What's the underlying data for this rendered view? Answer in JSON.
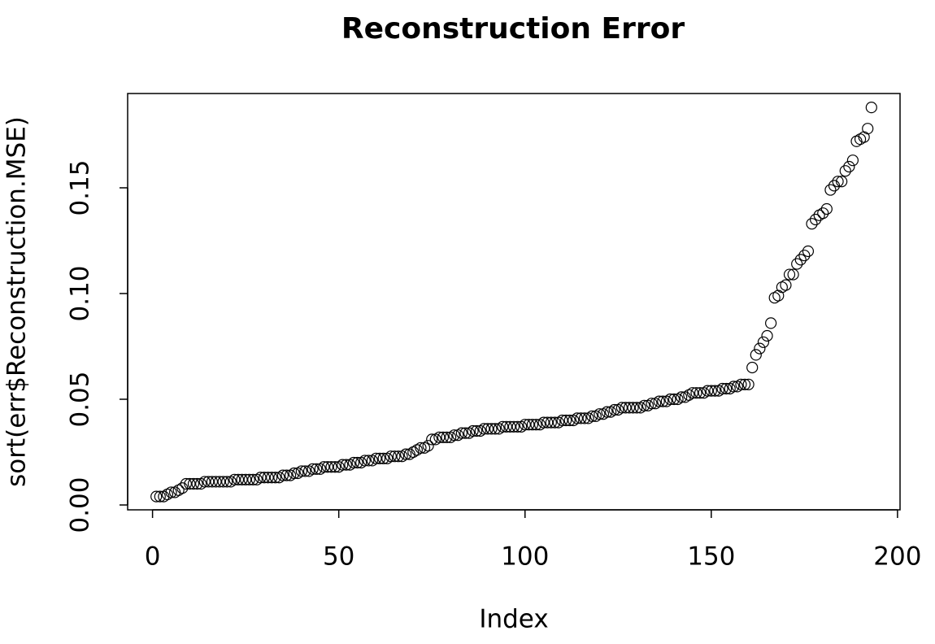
{
  "chart_data": {
    "type": "scatter",
    "title": "Reconstruction Error",
    "x_label": "Index",
    "y_label": "sort(err$Reconstruction.MSE)",
    "x": [
      1,
      2,
      3,
      4,
      5,
      6,
      7,
      8,
      9,
      10,
      11,
      12,
      13,
      14,
      15,
      16,
      17,
      18,
      19,
      20,
      21,
      22,
      23,
      24,
      25,
      26,
      27,
      28,
      29,
      30,
      31,
      32,
      33,
      34,
      35,
      36,
      37,
      38,
      39,
      40,
      41,
      42,
      43,
      44,
      45,
      46,
      47,
      48,
      49,
      50,
      51,
      52,
      53,
      54,
      55,
      56,
      57,
      58,
      59,
      60,
      61,
      62,
      63,
      64,
      65,
      66,
      67,
      68,
      69,
      70,
      71,
      72,
      73,
      74,
      75,
      76,
      77,
      78,
      79,
      80,
      81,
      82,
      83,
      84,
      85,
      86,
      87,
      88,
      89,
      90,
      91,
      92,
      93,
      94,
      95,
      96,
      97,
      98,
      99,
      100,
      101,
      102,
      103,
      104,
      105,
      106,
      107,
      108,
      109,
      110,
      111,
      112,
      113,
      114,
      115,
      116,
      117,
      118,
      119,
      120,
      121,
      122,
      123,
      124,
      125,
      126,
      127,
      128,
      129,
      130,
      131,
      132,
      133,
      134,
      135,
      136,
      137,
      138,
      139,
      140,
      141,
      142,
      143,
      144,
      145,
      146,
      147,
      148,
      149,
      150,
      151,
      152,
      153,
      154,
      155,
      156,
      157,
      158,
      159,
      160,
      161,
      162,
      163,
      164,
      165,
      166,
      167,
      168,
      169,
      170,
      171,
      172,
      173,
      174,
      175,
      176,
      177,
      178,
      179,
      180,
      181,
      182,
      183,
      184,
      185,
      186,
      187,
      188,
      189,
      190,
      191,
      192,
      193
    ],
    "values": [
      0.004,
      0.004,
      0.004,
      0.005,
      0.006,
      0.006,
      0.007,
      0.008,
      0.01,
      0.01,
      0.01,
      0.01,
      0.01,
      0.011,
      0.011,
      0.011,
      0.011,
      0.011,
      0.011,
      0.011,
      0.011,
      0.012,
      0.012,
      0.012,
      0.012,
      0.012,
      0.012,
      0.012,
      0.013,
      0.013,
      0.013,
      0.013,
      0.013,
      0.013,
      0.014,
      0.014,
      0.014,
      0.015,
      0.015,
      0.016,
      0.016,
      0.016,
      0.017,
      0.017,
      0.017,
      0.018,
      0.018,
      0.018,
      0.018,
      0.018,
      0.019,
      0.019,
      0.019,
      0.02,
      0.02,
      0.02,
      0.021,
      0.021,
      0.021,
      0.022,
      0.022,
      0.022,
      0.022,
      0.023,
      0.023,
      0.023,
      0.023,
      0.024,
      0.024,
      0.025,
      0.026,
      0.027,
      0.027,
      0.028,
      0.031,
      0.031,
      0.032,
      0.032,
      0.032,
      0.032,
      0.033,
      0.033,
      0.034,
      0.034,
      0.034,
      0.035,
      0.035,
      0.035,
      0.036,
      0.036,
      0.036,
      0.036,
      0.036,
      0.037,
      0.037,
      0.037,
      0.037,
      0.037,
      0.037,
      0.038,
      0.038,
      0.038,
      0.038,
      0.038,
      0.039,
      0.039,
      0.039,
      0.039,
      0.039,
      0.04,
      0.04,
      0.04,
      0.04,
      0.041,
      0.041,
      0.041,
      0.041,
      0.042,
      0.042,
      0.043,
      0.043,
      0.044,
      0.044,
      0.045,
      0.045,
      0.046,
      0.046,
      0.046,
      0.046,
      0.046,
      0.046,
      0.047,
      0.047,
      0.048,
      0.048,
      0.049,
      0.049,
      0.049,
      0.05,
      0.05,
      0.05,
      0.051,
      0.051,
      0.052,
      0.053,
      0.053,
      0.053,
      0.053,
      0.054,
      0.054,
      0.054,
      0.054,
      0.055,
      0.055,
      0.055,
      0.056,
      0.056,
      0.057,
      0.057,
      0.057,
      0.065,
      0.071,
      0.074,
      0.077,
      0.08,
      0.086,
      0.098,
      0.099,
      0.103,
      0.104,
      0.109,
      0.109,
      0.114,
      0.116,
      0.118,
      0.12,
      0.133,
      0.135,
      0.137,
      0.138,
      0.14,
      0.149,
      0.151,
      0.153,
      0.153,
      0.158,
      0.16,
      0.163,
      0.172,
      0.173,
      0.174,
      0.178,
      0.188
    ],
    "color": "#000000",
    "xlim": [
      -6.68,
      200.68
    ],
    "ylim": [
      -0.0023,
      0.1946
    ],
    "xticks": [
      0,
      50,
      100,
      150,
      200
    ],
    "yticks": [
      {
        "value": 0,
        "label": "0.00"
      },
      {
        "value": 0.05,
        "label": "0.05"
      },
      {
        "value": 0.1,
        "label": "0.10"
      },
      {
        "value": 0.15,
        "label": "0.15"
      }
    ]
  }
}
